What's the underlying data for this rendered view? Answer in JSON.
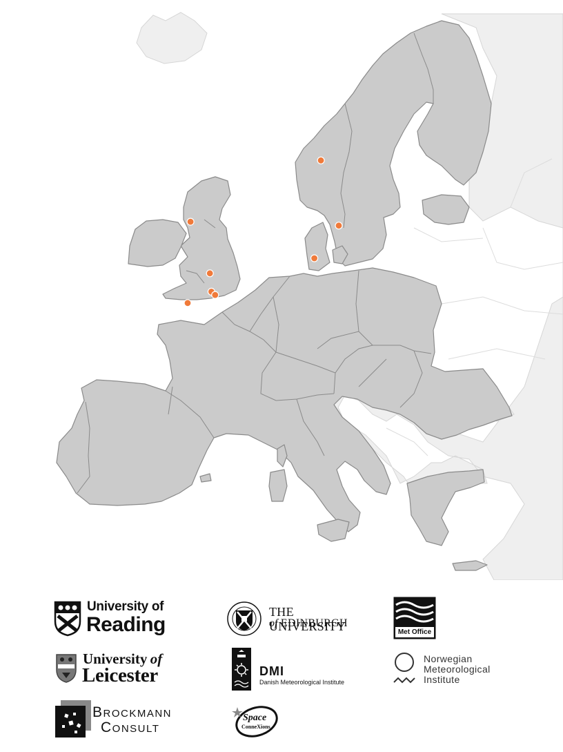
{
  "map": {
    "land_color": "#cbcbcb",
    "background_land_color": "#efefef",
    "marker_color": "#f07a3a",
    "markers_count_label": "",
    "sites": [
      {
        "name": "Oslo",
        "lon": 10.7,
        "lat": 59.9
      },
      {
        "name": "Copenhagen",
        "lon": 12.6,
        "lat": 55.7
      },
      {
        "name": "Hamburg",
        "lon": 10.0,
        "lat": 53.6
      },
      {
        "name": "Edinburgh",
        "lon": -3.2,
        "lat": 55.95
      },
      {
        "name": "Leicester",
        "lon": -1.13,
        "lat": 52.63
      },
      {
        "name": "Exeter",
        "lon": -3.5,
        "lat": 50.72
      },
      {
        "name": "Reading",
        "lon": -0.97,
        "lat": 51.45
      },
      {
        "name": "Guildford",
        "lon": -0.57,
        "lat": 51.24
      }
    ]
  },
  "logos": {
    "reading": {
      "line1": "University of",
      "line2": "Reading"
    },
    "edinburgh": {
      "line1": "THE UNIVERSITY",
      "line2_of": "of",
      "line2": "EDINBURGH"
    },
    "metoffice": {
      "label": "Met Office"
    },
    "leicester": {
      "line1": "University",
      "line1_of": "of",
      "line2": "Leicester"
    },
    "dmi": {
      "abbr": "DMI",
      "name": "Danish Meteorological Institute"
    },
    "met_norway": {
      "line1": "Norwegian",
      "line2": "Meteorological",
      "line3": "Institute"
    },
    "brockmann": {
      "line1": "Brockmann",
      "line2": "Consult"
    },
    "spaceconnexions": {
      "line1": "Space",
      "line2": "ConneXions"
    }
  }
}
